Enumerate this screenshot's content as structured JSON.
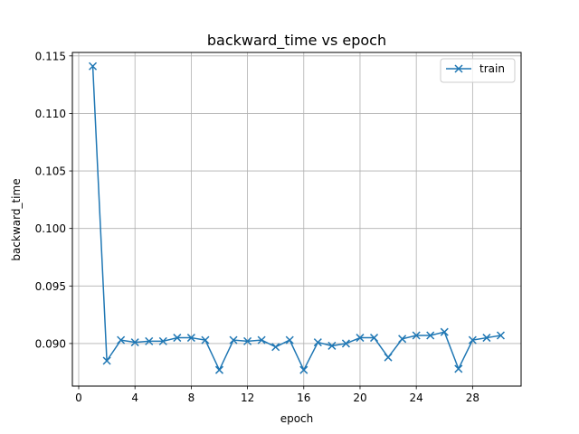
{
  "chart_data": {
    "type": "line",
    "title": "backward_time vs epoch",
    "xlabel": "epoch",
    "ylabel": "backward_time",
    "xlim": [
      -0.45,
      31.45
    ],
    "ylim": [
      0.0863,
      0.1153
    ],
    "xticks": [
      0,
      4,
      8,
      12,
      16,
      20,
      24,
      28
    ],
    "yticks": [
      0.09,
      0.095,
      0.1,
      0.105,
      0.11,
      0.115
    ],
    "ytick_labels": [
      "0.090",
      "0.095",
      "0.100",
      "0.105",
      "0.110",
      "0.115"
    ],
    "grid": true,
    "legend_position": "top-right",
    "marker": "x",
    "color": "#1f77b4",
    "series": [
      {
        "name": "train",
        "x": [
          1,
          2,
          3,
          4,
          5,
          6,
          7,
          8,
          9,
          10,
          11,
          12,
          13,
          14,
          15,
          16,
          17,
          18,
          19,
          20,
          21,
          22,
          23,
          24,
          25,
          26,
          27,
          28,
          29,
          30
        ],
        "values": [
          0.1141,
          0.0885,
          0.0903,
          0.0901,
          0.0902,
          0.0902,
          0.0905,
          0.0905,
          0.0903,
          0.0877,
          0.0903,
          0.0902,
          0.0903,
          0.0897,
          0.0903,
          0.0877,
          0.0901,
          0.0898,
          0.09,
          0.0905,
          0.0905,
          0.0888,
          0.0904,
          0.0907,
          0.0907,
          0.091,
          0.0878,
          0.0903,
          0.0905,
          0.0907
        ]
      }
    ]
  }
}
